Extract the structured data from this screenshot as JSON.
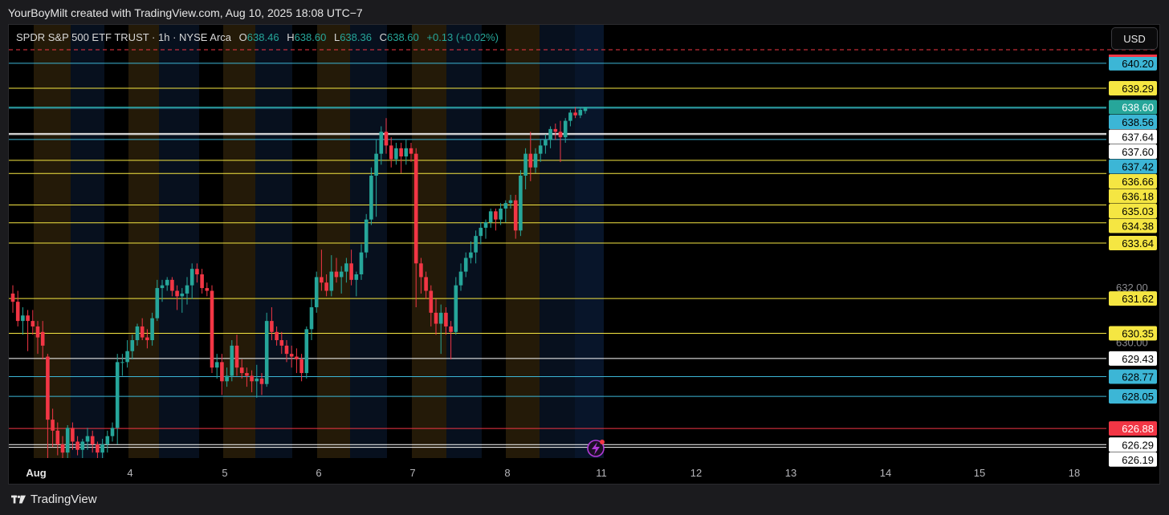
{
  "header": {
    "attribution": "YourBoyMilt created with TradingView.com, Aug 10, 2025 18:08 UTC−7"
  },
  "legend": {
    "symbol": "SPDR S&P 500 ETF TRUST · 1h · NYSE Arca",
    "open_label": "O",
    "open": "638.46",
    "high_label": "H",
    "high": "638.60",
    "low_label": "L",
    "low": "638.36",
    "close_label": "C",
    "close": "638.60",
    "change": "+0.13 (+0.02%)"
  },
  "currency_button": "USD",
  "footer": {
    "brand": "TradingView"
  },
  "colors": {
    "up": "#26a69a",
    "down": "#f23645",
    "yellow": "#f5e642",
    "cyan": "#3cb6d6",
    "white": "#ffffff"
  },
  "chart_data": {
    "type": "candlestick",
    "ylim": [
      625.8,
      641.6
    ],
    "x_ticks": [
      "Aug",
      "4",
      "5",
      "6",
      "7",
      "8",
      "11",
      "12",
      "13",
      "14",
      "15",
      "18"
    ],
    "y_axis_labels": [
      "632.00",
      "630.00"
    ],
    "levels": [
      {
        "label": "640.20",
        "value": 640.2,
        "color": "#3cb6d6",
        "text_color": "#000000"
      },
      {
        "label": "639.29",
        "value": 639.29,
        "color": "#f5e642",
        "text_color": "#000000"
      },
      {
        "label": "638.60",
        "value": 638.6,
        "color": "#26a69a",
        "text_color": "#ffffff"
      },
      {
        "label": "638.56",
        "value": 638.56,
        "color": "#3cb6d6",
        "text_color": "#000000"
      },
      {
        "label": "637.64",
        "value": 637.64,
        "color": "#ffffff",
        "text_color": "#000000"
      },
      {
        "label": "637.60",
        "value": 637.6,
        "color": "#ffffff",
        "text_color": "#000000"
      },
      {
        "label": "637.42",
        "value": 637.42,
        "color": "#3cb6d6",
        "text_color": "#000000"
      },
      {
        "label": "636.66",
        "value": 636.66,
        "color": "#f5e642",
        "text_color": "#000000"
      },
      {
        "label": "636.18",
        "value": 636.18,
        "color": "#f5e642",
        "text_color": "#000000"
      },
      {
        "label": "635.03",
        "value": 635.03,
        "color": "#f5e642",
        "text_color": "#000000"
      },
      {
        "label": "634.38",
        "value": 634.38,
        "color": "#f5e642",
        "text_color": "#000000"
      },
      {
        "label": "633.64",
        "value": 633.64,
        "color": "#f5e642",
        "text_color": "#000000"
      },
      {
        "label": "631.62",
        "value": 631.62,
        "color": "#f5e642",
        "text_color": "#000000"
      },
      {
        "label": "630.35",
        "value": 630.35,
        "color": "#f5e642",
        "text_color": "#000000"
      },
      {
        "label": "629.43",
        "value": 629.43,
        "color": "#ffffff",
        "text_color": "#000000"
      },
      {
        "label": "628.77",
        "value": 628.77,
        "color": "#3cb6d6",
        "text_color": "#000000"
      },
      {
        "label": "628.05",
        "value": 628.05,
        "color": "#3cb6d6",
        "text_color": "#000000"
      },
      {
        "label": "626.88",
        "value": 626.88,
        "color": "#f23645",
        "text_color": "#ffffff"
      },
      {
        "label": "626.29",
        "value": 626.29,
        "color": "#ffffff",
        "text_color": "#000000"
      },
      {
        "label": "626.19",
        "value": 626.19,
        "color": "#ffffff",
        "text_color": "#000000"
      }
    ],
    "candles": [
      [
        631.8,
        632.1,
        631.1,
        631.5
      ],
      [
        631.5,
        631.9,
        630.6,
        630.8
      ],
      [
        630.8,
        631.3,
        630.3,
        631.0
      ],
      [
        631.0,
        631.2,
        629.7,
        630.8
      ],
      [
        630.8,
        631.2,
        630.3,
        630.6
      ],
      [
        630.6,
        630.8,
        629.6,
        630.2
      ],
      [
        630.4,
        630.8,
        629.4,
        629.9
      ],
      [
        629.5,
        629.6,
        625.5,
        627.2
      ],
      [
        627.2,
        627.6,
        626.2,
        626.8
      ],
      [
        626.8,
        627.1,
        625.9,
        626.3
      ],
      [
        626.3,
        626.6,
        625.7,
        626.0
      ],
      [
        626.0,
        627.0,
        625.7,
        626.9
      ],
      [
        626.9,
        627.1,
        626.1,
        626.4
      ],
      [
        626.4,
        626.6,
        625.9,
        626.1
      ],
      [
        626.1,
        626.5,
        625.8,
        626.4
      ],
      [
        626.4,
        626.9,
        626.1,
        626.6
      ],
      [
        626.6,
        626.8,
        626.0,
        626.3
      ],
      [
        626.3,
        626.4,
        625.8,
        626.0
      ],
      [
        626.0,
        626.5,
        625.7,
        626.3
      ],
      [
        626.3,
        626.8,
        626.0,
        626.6
      ],
      [
        626.6,
        627.1,
        626.4,
        626.9
      ],
      [
        626.9,
        629.6,
        626.3,
        629.3
      ],
      [
        629.3,
        629.6,
        628.8,
        629.3
      ],
      [
        629.3,
        630.1,
        629.1,
        629.7
      ],
      [
        629.7,
        630.3,
        629.4,
        630.1
      ],
      [
        630.1,
        630.7,
        629.9,
        630.6
      ],
      [
        630.6,
        630.9,
        630.1,
        630.2
      ],
      [
        630.2,
        630.5,
        629.8,
        630.1
      ],
      [
        630.1,
        631.1,
        629.9,
        630.9
      ],
      [
        630.9,
        632.3,
        630.8,
        632.0
      ],
      [
        632.0,
        632.3,
        631.5,
        632.1
      ],
      [
        632.1,
        632.4,
        631.9,
        632.3
      ],
      [
        632.3,
        632.4,
        631.7,
        631.9
      ],
      [
        631.9,
        632.1,
        631.2,
        631.7
      ],
      [
        631.7,
        632.0,
        631.1,
        631.8
      ],
      [
        631.8,
        632.4,
        631.4,
        632.1
      ],
      [
        632.1,
        632.9,
        631.6,
        632.7
      ],
      [
        632.7,
        632.9,
        632.2,
        632.5
      ],
      [
        632.5,
        632.7,
        631.8,
        632.0
      ],
      [
        632.0,
        632.2,
        631.7,
        631.9
      ],
      [
        631.9,
        632.1,
        628.9,
        629.1
      ],
      [
        629.1,
        629.6,
        628.7,
        629.3
      ],
      [
        629.3,
        629.6,
        628.1,
        628.6
      ],
      [
        628.6,
        629.1,
        628.4,
        628.8
      ],
      [
        628.8,
        630.1,
        628.6,
        629.9
      ],
      [
        629.9,
        630.3,
        628.8,
        629.1
      ],
      [
        629.1,
        629.4,
        628.7,
        628.9
      ],
      [
        628.9,
        629.1,
        628.4,
        628.8
      ],
      [
        628.8,
        629.0,
        628.2,
        628.6
      ],
      [
        628.6,
        629.2,
        628.0,
        628.7
      ],
      [
        628.7,
        628.9,
        628.1,
        628.5
      ],
      [
        628.5,
        631.1,
        628.4,
        630.8
      ],
      [
        630.8,
        631.3,
        630.1,
        630.4
      ],
      [
        630.4,
        630.6,
        629.9,
        630.1
      ],
      [
        630.1,
        630.4,
        629.6,
        629.9
      ],
      [
        629.9,
        630.1,
        629.3,
        629.6
      ],
      [
        629.6,
        629.9,
        629.1,
        629.5
      ],
      [
        629.5,
        629.8,
        628.9,
        629.4
      ],
      [
        629.4,
        629.6,
        628.6,
        628.9
      ],
      [
        628.9,
        630.6,
        628.7,
        630.5
      ],
      [
        630.5,
        631.6,
        630.1,
        631.3
      ],
      [
        631.3,
        632.6,
        631.1,
        632.4
      ],
      [
        632.4,
        633.4,
        631.9,
        632.2
      ],
      [
        632.2,
        632.5,
        631.7,
        631.9
      ],
      [
        631.9,
        633.2,
        631.7,
        632.6
      ],
      [
        632.6,
        633.1,
        632.2,
        632.4
      ],
      [
        632.4,
        632.8,
        631.8,
        632.6
      ],
      [
        632.6,
        633.1,
        632.2,
        632.9
      ],
      [
        632.9,
        633.4,
        632.1,
        632.3
      ],
      [
        632.3,
        632.6,
        631.7,
        632.5
      ],
      [
        632.5,
        633.6,
        632.3,
        633.3
      ],
      [
        633.3,
        634.7,
        633.1,
        634.5
      ],
      [
        634.5,
        636.4,
        634.3,
        636.1
      ],
      [
        636.1,
        637.4,
        634.6,
        636.9
      ],
      [
        636.9,
        637.9,
        636.5,
        637.7
      ],
      [
        637.7,
        638.2,
        636.9,
        637.2
      ],
      [
        637.2,
        637.5,
        636.4,
        636.7
      ],
      [
        636.7,
        637.3,
        636.5,
        637.1
      ],
      [
        637.1,
        637.3,
        636.2,
        636.8
      ],
      [
        636.8,
        637.4,
        636.5,
        637.1
      ],
      [
        637.1,
        637.3,
        636.6,
        636.9
      ],
      [
        636.9,
        637.1,
        631.3,
        632.9
      ],
      [
        632.9,
        633.1,
        631.8,
        632.4
      ],
      [
        632.4,
        632.6,
        631.6,
        631.9
      ],
      [
        631.9,
        632.1,
        630.6,
        631.1
      ],
      [
        631.1,
        631.6,
        630.3,
        630.7
      ],
      [
        630.7,
        631.4,
        629.6,
        631.1
      ],
      [
        631.1,
        631.3,
        630.3,
        630.6
      ],
      [
        630.6,
        630.8,
        629.4,
        630.4
      ],
      [
        630.4,
        632.4,
        630.3,
        632.1
      ],
      [
        632.1,
        632.9,
        631.9,
        632.6
      ],
      [
        632.6,
        633.3,
        632.4,
        633.1
      ],
      [
        633.1,
        633.7,
        632.9,
        633.3
      ],
      [
        633.3,
        634.1,
        632.9,
        633.9
      ],
      [
        633.9,
        634.4,
        633.6,
        634.2
      ],
      [
        634.2,
        634.5,
        633.8,
        634.4
      ],
      [
        634.4,
        634.9,
        634.2,
        634.8
      ],
      [
        634.8,
        634.9,
        634.1,
        634.5
      ],
      [
        634.5,
        635.1,
        634.3,
        634.9
      ],
      [
        634.9,
        635.2,
        634.4,
        635.1
      ],
      [
        635.1,
        635.4,
        634.9,
        635.2
      ],
      [
        635.2,
        635.4,
        633.8,
        634.1
      ],
      [
        634.1,
        636.3,
        633.9,
        636.1
      ],
      [
        636.1,
        637.1,
        635.6,
        636.9
      ],
      [
        636.9,
        637.7,
        635.9,
        636.4
      ],
      [
        636.4,
        637.1,
        636.2,
        636.9
      ],
      [
        636.9,
        637.4,
        636.6,
        637.2
      ],
      [
        637.2,
        637.6,
        636.9,
        637.4
      ],
      [
        637.4,
        637.9,
        637.1,
        637.8
      ],
      [
        637.8,
        638.0,
        637.4,
        637.7
      ],
      [
        637.7,
        638.1,
        636.6,
        637.5
      ],
      [
        637.5,
        638.2,
        637.3,
        638.1
      ],
      [
        638.1,
        638.5,
        637.9,
        638.4
      ],
      [
        638.4,
        638.6,
        638.2,
        638.3
      ],
      [
        638.3,
        638.6,
        638.2,
        638.5
      ],
      [
        638.46,
        638.6,
        638.36,
        638.6
      ]
    ]
  }
}
